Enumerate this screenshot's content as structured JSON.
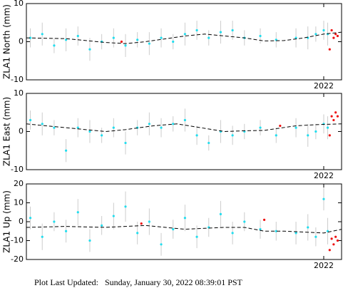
{
  "chart_data": [
    {
      "type": "scatter",
      "ylabel": "ZLA1 North (mm)",
      "xlim": [
        2014.5,
        2022.45
      ],
      "xticks": [
        2022
      ],
      "ylim": [
        -10,
        10
      ],
      "yticks": [
        -10,
        0,
        10
      ],
      "series": [
        {
          "color": "#22ddee",
          "x": [
            2014.6,
            2014.9,
            2015.2,
            2015.5,
            2015.8,
            2016.1,
            2016.4,
            2016.7,
            2017.0,
            2017.3,
            2017.6,
            2017.9,
            2018.2,
            2018.5,
            2018.8,
            2019.1,
            2019.4,
            2019.7,
            2020.0,
            2020.4,
            2020.8,
            2021.3,
            2021.6,
            2021.8,
            2022.0,
            2022.1
          ],
          "values": [
            1,
            2,
            -1,
            0.5,
            1.5,
            -2,
            0,
            1,
            -1,
            0.5,
            -0.5,
            1,
            0,
            2,
            3,
            1,
            2.5,
            3,
            1,
            1.5,
            0.5,
            1,
            1,
            2,
            3,
            2
          ],
          "errors": [
            2.5,
            3,
            2,
            3,
            2.5,
            3,
            2,
            2.5,
            3,
            2,
            3,
            2.5,
            2,
            3,
            2.5,
            2,
            3,
            2.5,
            2,
            2,
            2,
            2.5,
            3,
            2,
            2.5,
            3
          ]
        },
        {
          "color": "#ee1111",
          "x": [
            2016.9,
            2022.15,
            2022.2,
            2022.25,
            2022.3,
            2022.35
          ],
          "values": [
            0,
            -2,
            3,
            1,
            2,
            1.5
          ]
        },
        {
          "color": "#000000",
          "line": "dashed",
          "x": [
            2014.5,
            2015.5,
            2016.5,
            2017.0,
            2017.5,
            2018.5,
            2019.0,
            2019.5,
            2020.0,
            2020.5,
            2021.0,
            2021.5,
            2022.0,
            2022.45
          ],
          "values": [
            1,
            0.8,
            -0.2,
            -0.5,
            0,
            1.5,
            2,
            1.5,
            1,
            0.2,
            0.3,
            1,
            2,
            2.5
          ]
        }
      ]
    },
    {
      "type": "scatter",
      "ylabel": "ZLA1 East (mm)",
      "xlim": [
        2014.5,
        2022.45
      ],
      "xticks": [
        2022
      ],
      "ylim": [
        -10,
        10
      ],
      "yticks": [
        -10,
        0,
        10
      ],
      "series": [
        {
          "color": "#22ddee",
          "x": [
            2014.6,
            2014.9,
            2015.2,
            2015.5,
            2015.8,
            2016.1,
            2016.4,
            2016.7,
            2017.0,
            2017.3,
            2017.6,
            2017.9,
            2018.2,
            2018.5,
            2018.8,
            2019.1,
            2019.4,
            2019.7,
            2020.0,
            2020.4,
            2020.8,
            2021.3,
            2021.6,
            2021.8,
            2022.0,
            2022.1
          ],
          "values": [
            3,
            2,
            1,
            -5,
            1,
            0,
            -1,
            1,
            -3,
            1,
            2,
            1,
            2,
            3,
            -1,
            -3,
            0,
            -1,
            0,
            1,
            -1,
            1,
            -1,
            0,
            2,
            1
          ],
          "errors": [
            2.5,
            3,
            2,
            3,
            2.5,
            3,
            2,
            2.5,
            3,
            2,
            3,
            2.5,
            2,
            3,
            2.5,
            2,
            3,
            2.5,
            2,
            2,
            2,
            2.5,
            3,
            2,
            2.5,
            3
          ]
        },
        {
          "color": "#ee1111",
          "x": [
            2020.9,
            2022.15,
            2022.2,
            2022.25,
            2022.3,
            2022.35
          ],
          "values": [
            1.5,
            -1,
            4,
            3,
            5,
            4
          ]
        },
        {
          "color": "#000000",
          "line": "dashed",
          "x": [
            2014.5,
            2015.5,
            2016.5,
            2017.0,
            2017.7,
            2018.3,
            2018.9,
            2019.5,
            2020.0,
            2020.5,
            2021.3,
            2021.8,
            2022.45
          ],
          "values": [
            2,
            1,
            0,
            0.5,
            1.5,
            2,
            1,
            0,
            0.2,
            0.3,
            1.5,
            1.8,
            2
          ]
        }
      ]
    },
    {
      "type": "scatter",
      "ylabel": "ZLA1 Up (mm)",
      "xlim": [
        2014.5,
        2022.45
      ],
      "xticks": [
        2022
      ],
      "ylim": [
        -20,
        20
      ],
      "yticks": [
        -20,
        -10,
        0,
        10,
        20
      ],
      "series": [
        {
          "color": "#22ddee",
          "x": [
            2014.6,
            2014.9,
            2015.2,
            2015.5,
            2015.8,
            2016.1,
            2016.4,
            2016.7,
            2017.0,
            2017.3,
            2017.6,
            2017.9,
            2018.2,
            2018.5,
            2018.8,
            2019.1,
            2019.4,
            2019.7,
            2020.0,
            2020.4,
            2020.8,
            2021.3,
            2021.6,
            2021.8,
            2022.0,
            2022.1
          ],
          "values": [
            2,
            -8,
            0,
            -5,
            5,
            -10,
            -2,
            3,
            8,
            -6,
            0,
            -12,
            -4,
            2,
            -8,
            -3,
            4,
            -6,
            0,
            -4,
            -5,
            -6,
            -3,
            -8,
            12,
            -5
          ],
          "errors": [
            6,
            7,
            5,
            6,
            7,
            6,
            5,
            7,
            8,
            6,
            7,
            6,
            5,
            7,
            6,
            5,
            7,
            6,
            5,
            5,
            5,
            6,
            7,
            5,
            6,
            7
          ]
        },
        {
          "color": "#ee1111",
          "x": [
            2017.4,
            2020.5,
            2022.15,
            2022.2,
            2022.25,
            2022.3,
            2022.35
          ],
          "values": [
            -1,
            1,
            -15,
            -9,
            -12,
            -8,
            -10
          ]
        },
        {
          "color": "#000000",
          "line": "dashed",
          "x": [
            2014.5,
            2015.5,
            2016.5,
            2017.5,
            2018.5,
            2019.5,
            2020.0,
            2020.5,
            2021.0,
            2021.5,
            2022.0,
            2022.45
          ],
          "values": [
            -3,
            -2.5,
            -3,
            -2,
            -4,
            -3,
            -3,
            -5,
            -5,
            -5.5,
            -6,
            -4
          ]
        }
      ]
    }
  ],
  "footer": "Plot Last Updated:   Sunday, January 30, 2022 08:39:01 PST"
}
